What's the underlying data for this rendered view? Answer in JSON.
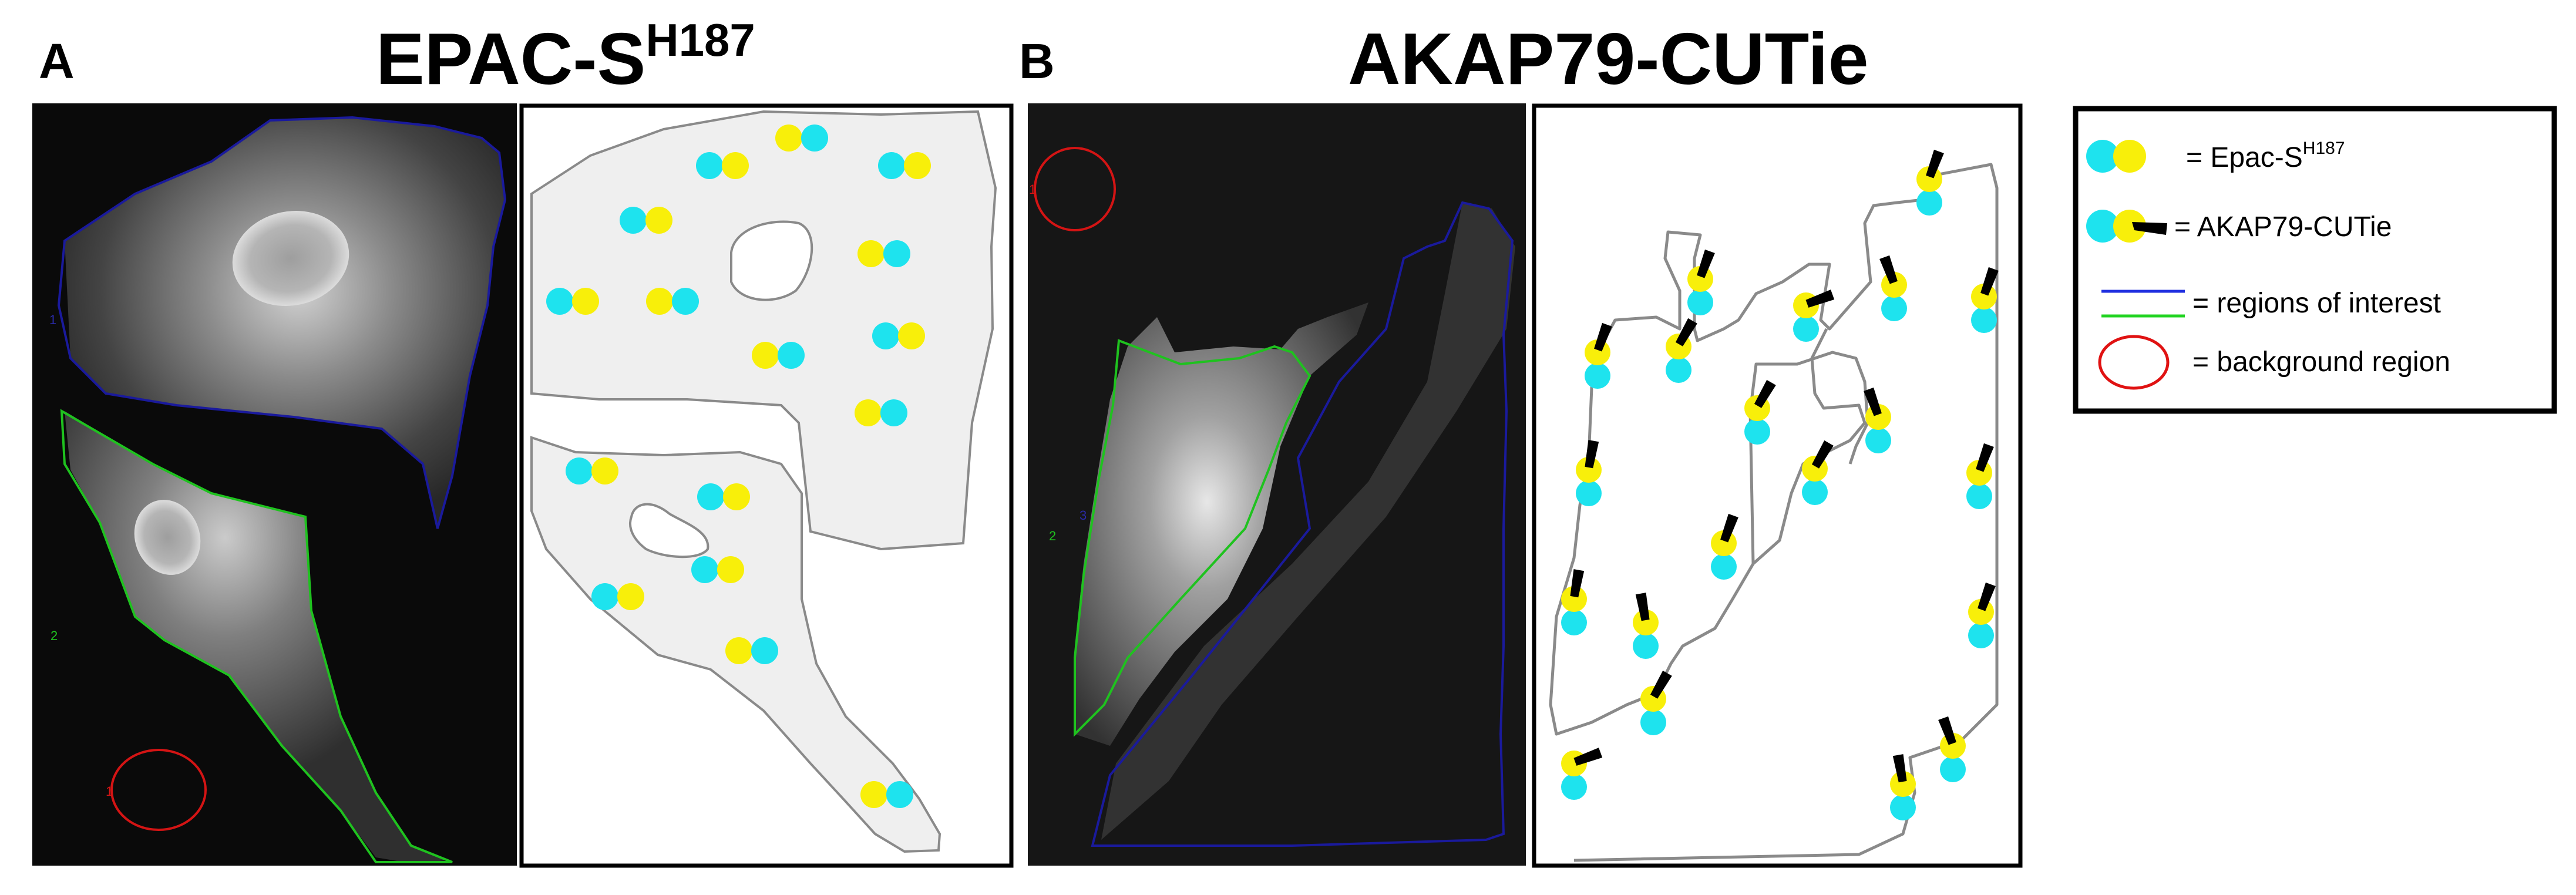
{
  "panel_a": {
    "letter": "A",
    "title_main": "EPAC-S",
    "title_sup": "H187",
    "roi_labels": {
      "blue": "1",
      "green": "2",
      "red": "1"
    }
  },
  "panel_b": {
    "letter": "B",
    "title": "AKAP79-CUTie",
    "roi_labels": {
      "red": "1",
      "green": "2",
      "blue": "3"
    }
  },
  "legend": {
    "epac_label": "= Epac-S",
    "epac_sup": "H187",
    "akap_label": "= AKAP79-CUTie",
    "roi_label": "= regions of interest",
    "background_label": "= background region"
  },
  "colors": {
    "cyan": "#1ee3ee",
    "yellow": "#f8ef0a",
    "roi_blue": "#1a1a9c",
    "roi_green": "#1fc21f",
    "roi_red": "#d41414",
    "legend_blue": "#1f2fe0",
    "legend_green": "#22d422",
    "legend_red": "#e01212",
    "cell_fill": "#efefef",
    "cell_outline": "#8a8a8a",
    "micrograph_bg": "#0a0a0a"
  },
  "icons": [
    "epac-sensor-icon",
    "akap-sensor-icon",
    "roi-line-icon",
    "background-circle-icon"
  ]
}
